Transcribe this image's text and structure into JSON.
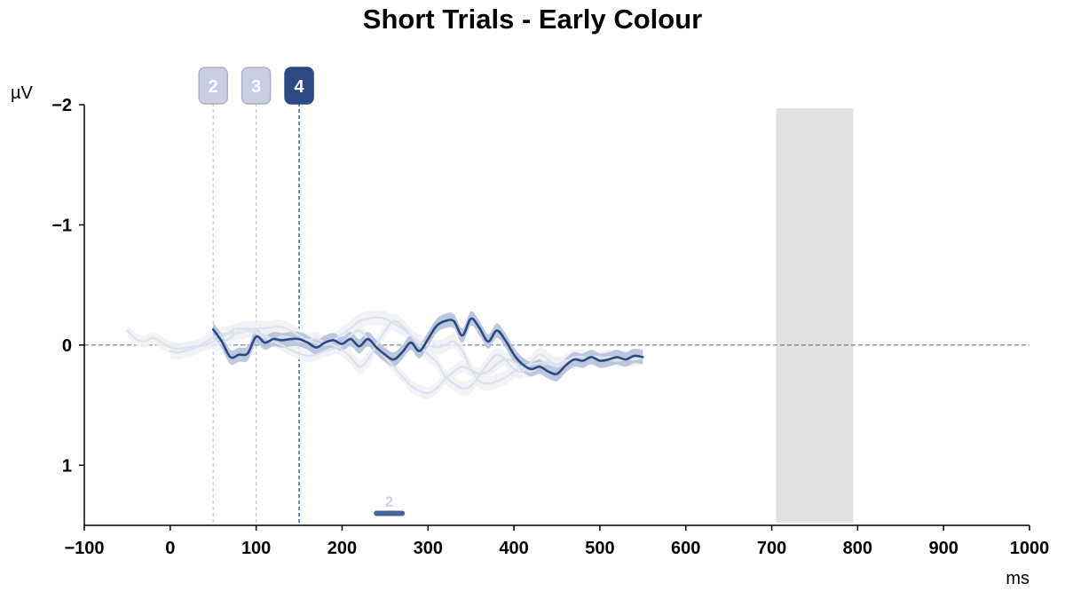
{
  "chart_data": {
    "type": "line",
    "title": "Short Trials - Early Colour",
    "xlabel": "ms",
    "ylabel": "µV",
    "xlim": [
      -100,
      1000
    ],
    "ylim": [
      -2,
      1.5
    ],
    "y_inverted": true,
    "x_ticks": [
      -100,
      0,
      100,
      200,
      300,
      400,
      500,
      600,
      700,
      800,
      900,
      1000
    ],
    "x_tick_labels": [
      "−100",
      "0",
      "100",
      "200",
      "300",
      "400",
      "500",
      "600",
      "700",
      "800",
      "900",
      "1000"
    ],
    "y_ticks": [
      -2,
      -1,
      0,
      1
    ],
    "y_tick_labels": [
      "−2",
      "−1",
      "0",
      "1"
    ],
    "zero_line": true,
    "grid": false,
    "shaded_region": {
      "x_start": 705,
      "x_end": 795,
      "color": "#e2e2e2"
    },
    "markers": [
      {
        "label": "2",
        "x": 50,
        "active": false
      },
      {
        "label": "3",
        "x": 100,
        "active": false
      },
      {
        "label": "4",
        "x": 150,
        "active": true
      }
    ],
    "clusters": [
      {
        "label": "2",
        "x_start": 240,
        "x_end": 270,
        "y": 1.4
      }
    ],
    "series": [
      {
        "active": false,
        "x": [
          -50,
          -40,
          -30,
          -20,
          -10,
          0,
          10,
          20,
          30,
          40,
          50,
          60,
          70,
          80,
          90,
          100,
          110,
          120,
          130,
          140,
          150,
          160,
          170,
          180,
          190,
          200,
          210,
          220,
          230,
          240,
          250,
          260,
          270,
          280,
          290,
          300,
          310,
          320,
          330,
          340,
          350,
          360,
          370,
          380,
          390,
          400,
          410,
          420,
          430,
          440,
          450,
          460,
          470,
          480,
          490,
          500,
          510,
          520,
          530,
          540,
          550
        ],
        "y": [
          -0.12,
          -0.05,
          -0.03,
          -0.06,
          -0.02,
          0.02,
          0.03,
          0.02,
          0.01,
          0.0,
          -0.03,
          -0.06,
          -0.11,
          -0.14,
          -0.12,
          -0.1,
          -0.06,
          -0.03,
          0.0,
          0.04,
          0.07,
          0.09,
          0.08,
          0.05,
          0.03,
          0.0,
          -0.08,
          -0.12,
          -0.05,
          0.02,
          0.1,
          0.18,
          0.26,
          0.34,
          0.38,
          0.4,
          0.36,
          0.28,
          0.22,
          0.18,
          0.21,
          0.24,
          0.22,
          0.16,
          0.12,
          0.14,
          0.2,
          0.22,
          0.18,
          0.15,
          0.16,
          0.13,
          0.12,
          0.12,
          0.1,
          0.1,
          0.12,
          0.13,
          0.12,
          0.1,
          0.11
        ],
        "ci": 0.05
      },
      {
        "active": false,
        "x": [
          0,
          10,
          20,
          30,
          40,
          50,
          60,
          70,
          80,
          90,
          100,
          110,
          120,
          130,
          140,
          150,
          160,
          170,
          180,
          190,
          200,
          210,
          220,
          230,
          240,
          250,
          260,
          270,
          280,
          290,
          300,
          310,
          320,
          330,
          340,
          350,
          360,
          370,
          380,
          390,
          400,
          410,
          420,
          430,
          440,
          450,
          460,
          470,
          480,
          490,
          500,
          510,
          520,
          530,
          540,
          550
        ],
        "y": [
          0.05,
          0.06,
          0.04,
          0.02,
          -0.02,
          -0.06,
          -0.09,
          -0.1,
          -0.1,
          -0.12,
          -0.14,
          -0.14,
          -0.15,
          -0.15,
          -0.12,
          -0.08,
          -0.04,
          -0.02,
          0.0,
          -0.04,
          -0.09,
          -0.14,
          -0.2,
          -0.22,
          -0.23,
          -0.22,
          -0.18,
          -0.14,
          -0.08,
          -0.03,
          0.0,
          0.02,
          0.0,
          -0.03,
          0.05,
          0.2,
          0.3,
          0.32,
          0.3,
          0.27,
          0.22,
          0.18,
          0.16,
          0.15,
          0.14,
          0.16,
          0.15,
          0.12,
          0.12,
          0.1,
          0.11,
          0.1,
          0.11,
          0.12,
          0.1,
          0.1
        ],
        "ci": 0.06
      },
      {
        "active": false,
        "x": [
          50,
          60,
          70,
          80,
          90,
          100,
          110,
          120,
          130,
          140,
          150,
          160,
          170,
          180,
          190,
          200,
          210,
          220,
          230,
          240,
          250,
          260,
          270,
          280,
          290,
          300,
          310,
          320,
          330,
          340,
          350,
          360,
          370,
          380,
          390,
          400,
          410,
          420,
          430,
          440,
          450,
          460,
          470,
          480,
          490,
          500,
          510,
          520,
          530,
          540,
          550
        ],
        "y": [
          0.0,
          -0.02,
          -0.06,
          -0.12,
          -0.14,
          -0.12,
          -0.08,
          -0.05,
          -0.07,
          -0.06,
          -0.03,
          -0.04,
          -0.05,
          -0.02,
          0.0,
          0.04,
          0.1,
          0.18,
          0.12,
          0.0,
          -0.12,
          -0.2,
          -0.16,
          -0.08,
          0.0,
          0.08,
          0.14,
          0.26,
          0.32,
          0.36,
          0.34,
          0.25,
          0.15,
          0.08,
          0.12,
          0.2,
          0.22,
          0.14,
          0.08,
          0.12,
          0.18,
          0.14,
          0.1,
          0.1,
          0.11,
          0.12,
          0.1,
          0.1,
          0.11,
          0.12,
          0.1
        ],
        "ci": 0.06
      },
      {
        "active": true,
        "x": [
          50,
          60,
          70,
          80,
          90,
          100,
          110,
          120,
          130,
          140,
          150,
          160,
          170,
          180,
          190,
          200,
          210,
          220,
          230,
          240,
          250,
          260,
          270,
          280,
          290,
          300,
          310,
          320,
          330,
          340,
          350,
          360,
          370,
          380,
          390,
          400,
          410,
          420,
          430,
          440,
          450,
          460,
          470,
          480,
          490,
          500,
          510,
          520,
          530,
          540,
          550
        ],
        "y": [
          -0.13,
          -0.03,
          0.1,
          0.08,
          0.07,
          -0.07,
          -0.02,
          -0.05,
          -0.04,
          -0.05,
          -0.05,
          -0.02,
          0.02,
          -0.02,
          -0.04,
          -0.01,
          -0.05,
          0.01,
          -0.05,
          0.02,
          0.08,
          0.12,
          0.06,
          -0.02,
          0.05,
          -0.05,
          -0.16,
          -0.2,
          -0.2,
          -0.08,
          -0.22,
          -0.14,
          -0.03,
          -0.12,
          -0.04,
          0.08,
          0.16,
          0.2,
          0.18,
          0.22,
          0.24,
          0.17,
          0.12,
          0.13,
          0.1,
          0.13,
          0.12,
          0.1,
          0.12,
          0.09,
          0.1
        ],
        "ci": 0.06
      }
    ]
  },
  "colors": {
    "active": "#2c4a82",
    "active_band": "#b5c2da",
    "inactive_line": "#dde2ee",
    "inactive_band": "#eef1f6",
    "marker_inactive_fill": "#c9cfde",
    "marker_inactive_stroke": "#a8b1c8",
    "cluster_label": "#c9cfde",
    "zero_line": "#666666"
  }
}
